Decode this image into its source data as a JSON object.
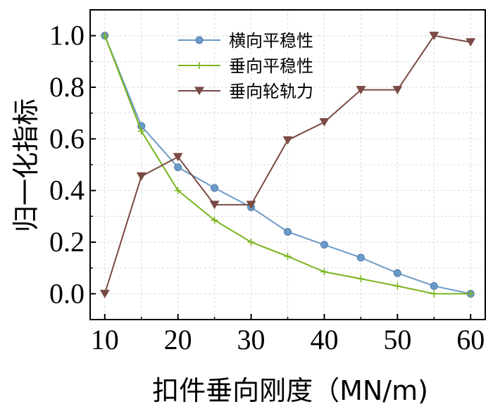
{
  "chart_data": {
    "type": "line",
    "xlabel": "扣件垂向刚度（MN/m)",
    "ylabel": "归一化指标",
    "x": [
      10,
      15,
      20,
      25,
      30,
      35,
      40,
      45,
      50,
      55,
      60
    ],
    "xticks": [
      "10",
      "20",
      "30",
      "40",
      "50",
      "60"
    ],
    "yticks": [
      "0.0",
      "0.2",
      "0.4",
      "0.6",
      "0.8",
      "1.0"
    ],
    "xlim": [
      8,
      62
    ],
    "ylim": [
      -0.1,
      1.1
    ],
    "grid": true,
    "legend_position": "top-center",
    "series": [
      {
        "name": "横向平稳性",
        "color": "#6a9ac9",
        "marker": "circle",
        "values": [
          1.0,
          0.65,
          0.49,
          0.41,
          0.335,
          0.24,
          0.19,
          0.14,
          0.08,
          0.03,
          0.0
        ]
      },
      {
        "name": "垂向平稳性",
        "color": "#7ab51d",
        "marker": "plus",
        "values": [
          1.0,
          0.63,
          0.4,
          0.285,
          0.2,
          0.145,
          0.085,
          0.058,
          0.03,
          0.0,
          0.0
        ]
      },
      {
        "name": "垂向轮轨力",
        "color": "#7a4a44",
        "marker": "triangle-down",
        "values": [
          0.0,
          0.455,
          0.53,
          0.345,
          0.345,
          0.595,
          0.665,
          0.79,
          0.79,
          1.0,
          0.975
        ]
      }
    ]
  }
}
